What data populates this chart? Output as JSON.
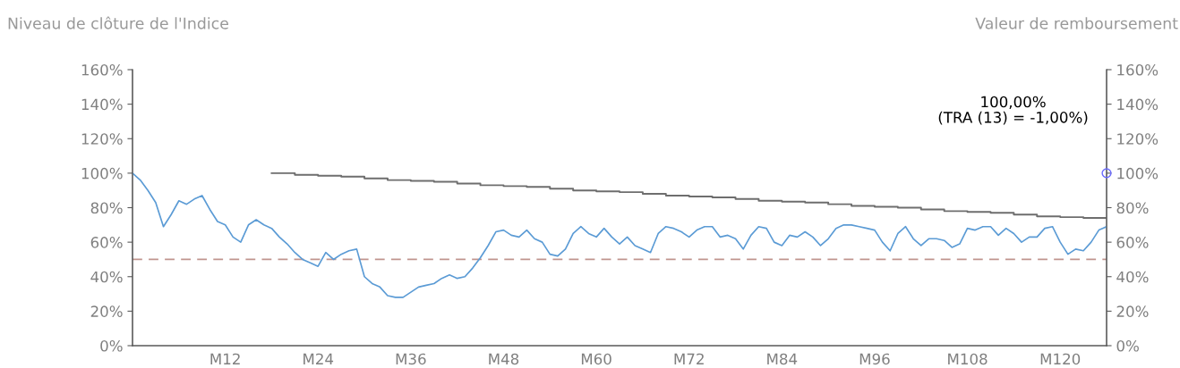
{
  "chart_data": {
    "type": "line",
    "ylabel": "Niveau de clôture de l'Indice",
    "y2label": "Valeur de remboursement",
    "categories": [
      null,
      null,
      null,
      null,
      null,
      null,
      null,
      null,
      null,
      null,
      null,
      null,
      "M12",
      null,
      null,
      null,
      null,
      null,
      null,
      null,
      null,
      null,
      null,
      null,
      "M24",
      null,
      null,
      null,
      null,
      null,
      null,
      null,
      null,
      null,
      null,
      null,
      "M36",
      null,
      null,
      null,
      null,
      null,
      null,
      null,
      null,
      null,
      null,
      null,
      "M48",
      null,
      null,
      null,
      null,
      null,
      null,
      null,
      null,
      null,
      null,
      null,
      "M60",
      null,
      null,
      null,
      null,
      null,
      null,
      null,
      null,
      null,
      null,
      null,
      "M72",
      null,
      null,
      null,
      null,
      null,
      null,
      null,
      null,
      null,
      null,
      null,
      "M84",
      null,
      null,
      null,
      null,
      null,
      null,
      null,
      null,
      null,
      null,
      null,
      "M96",
      null,
      null,
      null,
      null,
      null,
      null,
      null,
      null,
      null,
      null,
      null,
      "M108",
      null,
      null,
      null,
      null,
      null,
      null,
      null,
      null,
      null,
      null,
      null,
      "M120",
      null,
      null,
      null,
      null,
      null,
      null
    ],
    "ylim": [
      0,
      160
    ],
    "yticks": [
      {
        "value": 0,
        "label": "0%"
      },
      {
        "value": 20,
        "label": "20%"
      },
      {
        "value": 40,
        "label": "40%"
      },
      {
        "value": 60,
        "label": "60%"
      },
      {
        "value": 80,
        "label": "80%"
      },
      {
        "value": 100,
        "label": "100%"
      },
      {
        "value": 120,
        "label": "120%"
      },
      {
        "value": 140,
        "label": "140%"
      },
      {
        "value": 160,
        "label": "160%"
      }
    ],
    "y2lim": [
      0,
      160
    ],
    "y2ticks": [
      {
        "value": 0,
        "label": "0%"
      },
      {
        "value": 20,
        "label": "20%"
      },
      {
        "value": 40,
        "label": "40%"
      },
      {
        "value": 60,
        "label": "60%"
      },
      {
        "value": 80,
        "label": "80%"
      },
      {
        "value": 100,
        "label": "100%"
      },
      {
        "value": 120,
        "label": "120%"
      },
      {
        "value": 140,
        "label": "140%"
      },
      {
        "value": 160,
        "label": "160%"
      }
    ],
    "grid": false,
    "legend": false,
    "marker": "none",
    "line_style": "solid",
    "ref_lines": [
      {
        "axis": "y",
        "value": 50,
        "color": "#c0958f",
        "line_style": "dashed"
      }
    ],
    "annotations": [
      "100,00%\n(TRA (13) = -1,00%)"
    ],
    "series": [
      {
        "color": "#5b9bd5",
        "values": [
          100,
          96,
          90,
          83,
          69,
          76,
          84,
          82,
          85,
          87,
          79,
          72,
          70,
          63,
          60,
          70,
          73,
          70,
          68,
          63,
          59,
          54,
          50,
          48,
          46,
          54,
          50,
          53,
          55,
          56,
          40,
          36,
          34,
          29,
          28,
          28,
          31,
          34,
          35,
          36,
          39,
          41,
          39,
          40,
          45,
          51,
          58,
          66,
          67,
          64,
          63,
          67,
          62,
          60,
          53,
          52,
          56,
          65,
          69,
          65,
          63,
          68,
          63,
          59,
          63,
          58,
          56,
          54,
          65,
          69,
          68,
          66,
          63,
          67,
          69,
          69,
          63,
          64,
          62,
          56,
          64,
          69,
          68,
          60,
          58,
          64,
          63,
          66,
          63,
          58,
          62,
          68,
          70,
          70,
          69,
          68,
          67,
          60,
          55,
          65,
          69,
          62,
          58,
          62,
          62,
          61,
          57,
          59,
          68,
          67,
          69,
          69,
          64,
          68,
          65,
          60,
          63,
          63,
          68,
          69,
          60,
          53,
          56,
          55,
          60,
          67,
          69
        ]
      },
      {
        "type": "step",
        "color": "#6e6e6e",
        "values": [
          null,
          null,
          null,
          null,
          null,
          null,
          null,
          null,
          null,
          null,
          null,
          null,
          null,
          null,
          null,
          null,
          null,
          null,
          100,
          100,
          100,
          99,
          99,
          99,
          98.5,
          98.5,
          98.5,
          98,
          98,
          98,
          97,
          97,
          97,
          96,
          96,
          96,
          95.5,
          95.5,
          95.5,
          95,
          95,
          95,
          94,
          94,
          94,
          93,
          93,
          93,
          92.5,
          92.5,
          92.5,
          92,
          92,
          92,
          91,
          91,
          91,
          90,
          90,
          90,
          89.5,
          89.5,
          89.5,
          89,
          89,
          89,
          88,
          88,
          88,
          87,
          87,
          87,
          86.5,
          86.5,
          86.5,
          86,
          86,
          86,
          85,
          85,
          85,
          84,
          84,
          84,
          83.5,
          83.5,
          83.5,
          83,
          83,
          83,
          82,
          82,
          82,
          81,
          81,
          81,
          80.5,
          80.5,
          80.5,
          80,
          80,
          80,
          79,
          79,
          79,
          78,
          78,
          78,
          77.5,
          77.5,
          77.5,
          77,
          77,
          77,
          76,
          76,
          76,
          75,
          75,
          75,
          74.5,
          74.5,
          74.5,
          74,
          74,
          74,
          74
        ]
      },
      {
        "type": "scatter",
        "axis": "y2",
        "color": "#6a6aff",
        "marker": "circle",
        "values": [
          null,
          null,
          null,
          null,
          null,
          null,
          null,
          null,
          null,
          null,
          null,
          null,
          null,
          null,
          null,
          null,
          null,
          null,
          null,
          null,
          null,
          null,
          null,
          null,
          null,
          null,
          null,
          null,
          null,
          null,
          null,
          null,
          null,
          null,
          null,
          null,
          null,
          null,
          null,
          null,
          null,
          null,
          null,
          null,
          null,
          null,
          null,
          null,
          null,
          null,
          null,
          null,
          null,
          null,
          null,
          null,
          null,
          null,
          null,
          null,
          null,
          null,
          null,
          null,
          null,
          null,
          null,
          null,
          null,
          null,
          null,
          null,
          null,
          null,
          null,
          null,
          null,
          null,
          null,
          null,
          null,
          null,
          null,
          null,
          null,
          null,
          null,
          null,
          null,
          null,
          null,
          null,
          null,
          null,
          null,
          null,
          null,
          null,
          null,
          null,
          null,
          null,
          null,
          null,
          null,
          null,
          null,
          null,
          null,
          null,
          null,
          null,
          null,
          null,
          null,
          null,
          null,
          null,
          null,
          null,
          null,
          null,
          null,
          null,
          null,
          null,
          100
        ]
      }
    ]
  }
}
